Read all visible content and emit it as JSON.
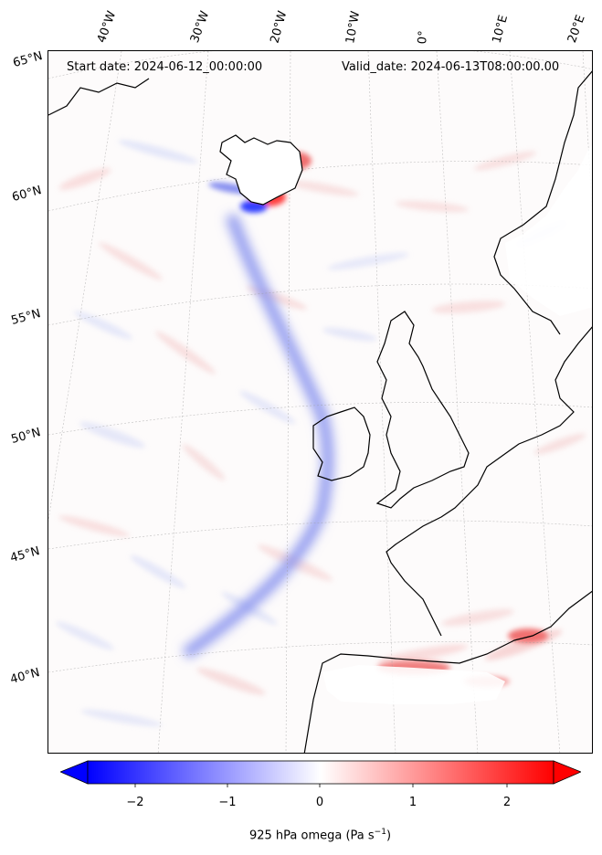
{
  "header": {
    "start_date": "Start date: 2024-06-12_00:00:00",
    "valid_date": "Valid_date: 2024-06-13T08:00:00.00"
  },
  "longitude_labels": [
    "40°W",
    "30°W",
    "20°W",
    "10°W",
    "0°",
    "10°E",
    "20°E"
  ],
  "latitude_labels": [
    "65°N",
    "60°N",
    "55°N",
    "50°N",
    "45°N",
    "40°N"
  ],
  "colorbar": {
    "ticks": [
      "−2",
      "−1",
      "0",
      "1",
      "2"
    ],
    "label": "925 hPa omega (Pa s",
    "label_exp": "−1",
    "label_close": ")",
    "min": -2.6,
    "max": 2.6,
    "colors": {
      "negative": "#0000ff",
      "zero": "#ffffff",
      "positive": "#ff0000"
    }
  },
  "map": {
    "coastline_color": "#000000",
    "gridline_color": "#999999"
  }
}
